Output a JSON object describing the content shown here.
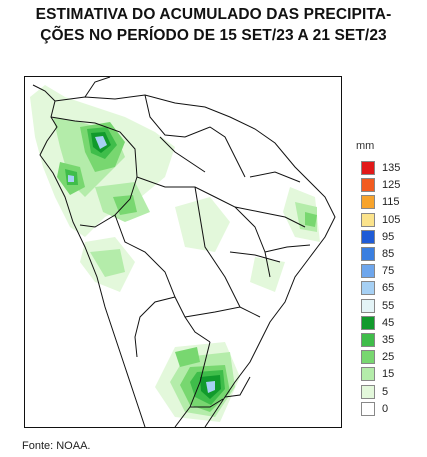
{
  "title": {
    "line1": "ESTIMATIVA DO ACUMULADO DAS PRECIPITA-",
    "line2": "ÇÕES NO PERÍODO DE 15 SET/23 A 21 SET/23"
  },
  "legend": {
    "unit": "mm",
    "items": [
      {
        "label": "135",
        "color": "#e11919"
      },
      {
        "label": "125",
        "color": "#f25b1f"
      },
      {
        "label": "115",
        "color": "#f7a32c"
      },
      {
        "label": "105",
        "color": "#fbe38c"
      },
      {
        "label": "95",
        "color": "#1f5bd6"
      },
      {
        "label": "85",
        "color": "#3a7fe0"
      },
      {
        "label": "75",
        "color": "#6ea6ec"
      },
      {
        "label": "65",
        "color": "#a6d0f4"
      },
      {
        "label": "55",
        "color": "#e4f4f7"
      },
      {
        "label": "45",
        "color": "#119a2c"
      },
      {
        "label": "35",
        "color": "#3fbd4a"
      },
      {
        "label": "25",
        "color": "#78d770"
      },
      {
        "label": "15",
        "color": "#b4ecaa"
      },
      {
        "label": "5",
        "color": "#e3f8db"
      },
      {
        "label": "0",
        "color": "#ffffff"
      }
    ]
  },
  "source": "Fonte: NOAA."
}
